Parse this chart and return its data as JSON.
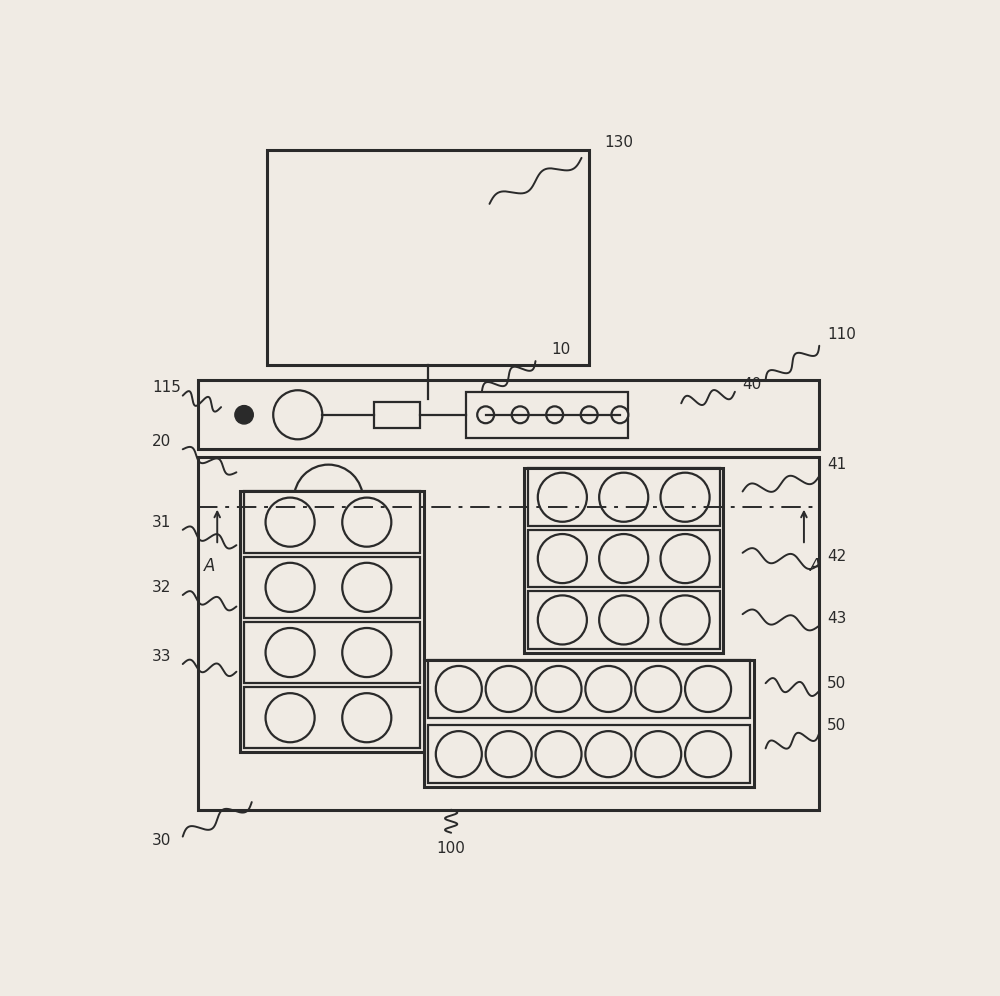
{
  "bg_color": "#f0ebe4",
  "line_color": "#2a2a2a",
  "lw_main": 2.2,
  "lw_thin": 1.6,
  "fig_width": 10.0,
  "fig_height": 9.96
}
